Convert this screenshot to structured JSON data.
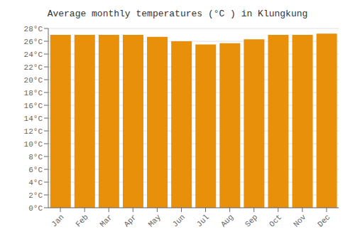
{
  "chart_data": {
    "type": "bar",
    "title": "Average monthly temperatures (°C ) in Klungkung",
    "categories": [
      "Jan",
      "Feb",
      "Mar",
      "Apr",
      "May",
      "Jun",
      "Jul",
      "Aug",
      "Sep",
      "Oct",
      "Nov",
      "Dec"
    ],
    "values": [
      27.0,
      27.0,
      27.0,
      27.0,
      26.7,
      26.0,
      25.5,
      25.7,
      26.3,
      27.0,
      27.0,
      27.2
    ],
    "color": "#E8900A",
    "ylim": [
      0,
      28
    ],
    "yticks": [
      {
        "value": 0,
        "label": "0°C"
      },
      {
        "value": 2,
        "label": "2°C"
      },
      {
        "value": 4,
        "label": "4°C"
      },
      {
        "value": 6,
        "label": "6°C"
      },
      {
        "value": 8,
        "label": "8°C"
      },
      {
        "value": 10,
        "label": "10°C"
      },
      {
        "value": 12,
        "label": "12°C"
      },
      {
        "value": 14,
        "label": "14°C"
      },
      {
        "value": 16,
        "label": "16°C"
      },
      {
        "value": 18,
        "label": "18°C"
      },
      {
        "value": 20,
        "label": "20°C"
      },
      {
        "value": 22,
        "label": "22°C"
      },
      {
        "value": 24,
        "label": "24°C"
      },
      {
        "value": 26,
        "label": "26°C"
      },
      {
        "value": 28,
        "label": "28°C"
      }
    ],
    "grid": true
  }
}
